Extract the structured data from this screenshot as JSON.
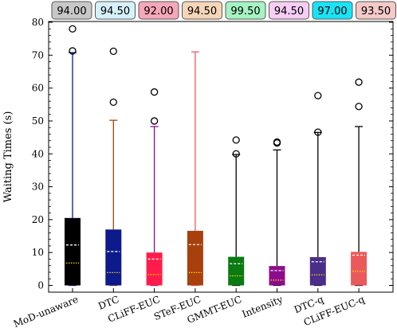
{
  "chart_data": {
    "type": "box",
    "ylabel": "Waiting Times (s)",
    "ylim": [
      0,
      80
    ],
    "yticks": [
      0,
      10,
      20,
      30,
      40,
      50,
      60,
      70,
      80
    ],
    "grid": false,
    "categories": [
      "MoD-unaware",
      "DTC",
      "CLiFF-EUC",
      "STeF-EUC",
      "GMMT-EUC",
      "Intensity",
      "DTC-q",
      "CLiFF-EUC-q"
    ],
    "badges": [
      "94.00",
      "94.50",
      "92.00",
      "94.50",
      "99.50",
      "94.50",
      "97.00",
      "93.50"
    ],
    "badge_colors": [
      "#c8c8c8",
      "#d6f1fb",
      "#f6a7b8",
      "#f6d6b8",
      "#a6f3c2",
      "#f6cdf4",
      "#19e3f6",
      "#f4c9c7"
    ],
    "box_colors": [
      "#000000",
      "#0d1a8c",
      "#ff1c4a",
      "#a8400d",
      "#0a7a12",
      "#8c0d8c",
      "#4a2e8a",
      "#eb5a5a"
    ],
    "whisker_colors": [
      "#0d1a8c",
      "#a8400d",
      "#8c0d8c",
      "#eb5a5a",
      "#000000",
      "#000000",
      "#000000",
      "#000000"
    ],
    "mean_color": "#ffffff",
    "median_color": "#ffd400",
    "boxes": [
      {
        "min": 0,
        "q1": 0,
        "median": 6.8,
        "mean": 12.3,
        "q3": 20.5,
        "max": 70.8,
        "outliers": [
          71.3,
          78.0
        ]
      },
      {
        "min": 0,
        "q1": 0,
        "median": 3.9,
        "mean": 10.3,
        "q3": 17.0,
        "max": 50.2,
        "outliers": [
          55.7,
          71.2
        ]
      },
      {
        "min": 0,
        "q1": 0,
        "median": 3.3,
        "mean": 8.0,
        "q3": 10.0,
        "max": 48.3,
        "outliers": [
          50.0,
          58.8
        ]
      },
      {
        "min": 0,
        "q1": 0,
        "median": 3.9,
        "mean": 12.4,
        "q3": 16.6,
        "max": 71.0,
        "outliers": []
      },
      {
        "min": 0,
        "q1": 0,
        "median": 2.9,
        "mean": 6.6,
        "q3": 8.7,
        "max": 39.8,
        "outliers": [
          40.0,
          44.2
        ]
      },
      {
        "min": 0,
        "q1": 0,
        "median": 1.6,
        "mean": 4.5,
        "q3": 5.9,
        "max": 41.2,
        "outliers": [
          43.3,
          43.6
        ]
      },
      {
        "min": 0,
        "q1": 0,
        "median": 3.2,
        "mean": 7.2,
        "q3": 8.6,
        "max": 46.5,
        "outliers": [
          46.6,
          57.7
        ]
      },
      {
        "min": 0,
        "q1": 0,
        "median": 4.3,
        "mean": 9.2,
        "q3": 10.2,
        "max": 48.3,
        "outliers": [
          54.4,
          61.8
        ]
      }
    ]
  }
}
